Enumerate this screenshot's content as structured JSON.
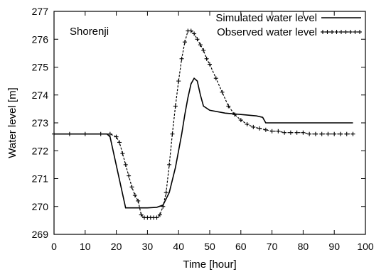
{
  "chart_data": {
    "type": "line",
    "xlabel": "Time [hour]",
    "ylabel": "Water level [m]",
    "xlim": [
      0,
      100
    ],
    "ylim": [
      269,
      277
    ],
    "xticks": [
      0,
      10,
      20,
      30,
      40,
      50,
      60,
      70,
      80,
      90,
      100
    ],
    "yticks": [
      269,
      270,
      271,
      272,
      273,
      274,
      275,
      276,
      277
    ],
    "grid": false,
    "legend_position": "top-right",
    "annotation": "Shorenji",
    "series": [
      {
        "name": "Simulated water level",
        "style": "solid",
        "color": "#000000",
        "x": [
          0,
          17,
          18,
          23,
          27,
          30,
          33,
          35,
          37,
          39,
          40,
          41,
          42,
          43,
          44,
          45,
          46,
          47,
          48,
          50,
          55,
          60,
          65,
          67,
          68,
          70,
          80,
          90,
          96
        ],
        "y": [
          272.6,
          272.6,
          272.5,
          269.95,
          269.95,
          269.95,
          269.97,
          270.05,
          270.5,
          271.4,
          272.0,
          272.6,
          273.3,
          273.9,
          274.4,
          274.6,
          274.5,
          274.0,
          273.6,
          273.45,
          273.35,
          273.3,
          273.25,
          273.2,
          273.0,
          273.0,
          273.0,
          273.0,
          273.0
        ]
      },
      {
        "name": "Observed  water level",
        "style": "dashed-markers",
        "color": "#000000",
        "x": [
          0,
          5,
          10,
          15,
          18,
          20,
          21,
          22,
          23,
          24,
          25,
          26,
          27,
          28,
          29,
          30,
          31,
          32,
          33,
          34,
          35,
          36,
          37,
          38,
          39,
          40,
          41,
          42,
          43,
          44,
          45,
          46,
          47,
          48,
          49,
          50,
          52,
          54,
          56,
          58,
          60,
          62,
          64,
          66,
          68,
          70,
          72,
          74,
          76,
          78,
          80,
          82,
          84,
          86,
          88,
          90,
          92,
          94,
          96
        ],
        "y": [
          272.6,
          272.6,
          272.6,
          272.6,
          272.6,
          272.5,
          272.3,
          271.9,
          271.5,
          271.1,
          270.7,
          270.4,
          270.2,
          269.7,
          269.6,
          269.6,
          269.6,
          269.6,
          269.6,
          269.7,
          270.0,
          270.5,
          271.5,
          272.6,
          273.6,
          274.5,
          275.3,
          275.9,
          276.3,
          276.3,
          276.2,
          276.0,
          275.8,
          275.6,
          275.3,
          275.1,
          274.6,
          274.1,
          273.6,
          273.3,
          273.1,
          272.95,
          272.85,
          272.8,
          272.75,
          272.7,
          272.7,
          272.65,
          272.65,
          272.65,
          272.65,
          272.6,
          272.6,
          272.6,
          272.6,
          272.6,
          272.6,
          272.6,
          272.6
        ]
      }
    ]
  }
}
